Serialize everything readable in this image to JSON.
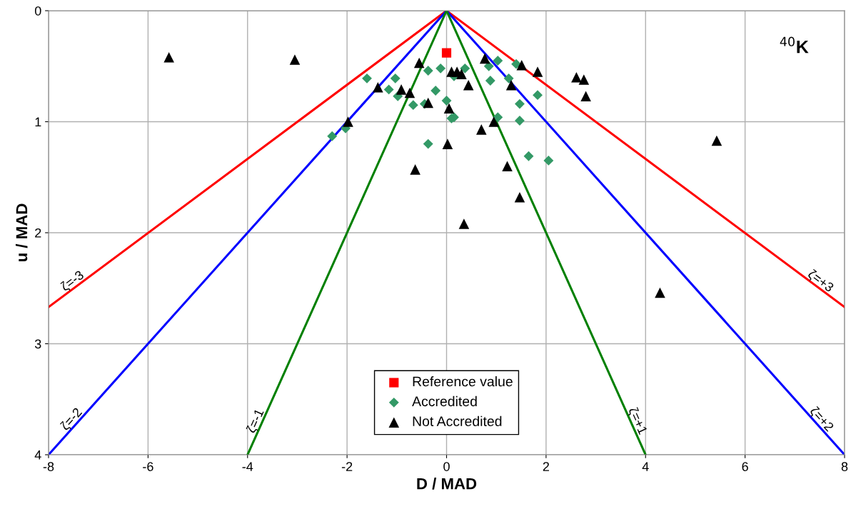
{
  "chart_data": {
    "type": "scatter",
    "xlabel": "D / MAD",
    "ylabel": "u / MAD",
    "xlim": [
      -8,
      8
    ],
    "xticks": [
      -8,
      -6,
      -4,
      -2,
      0,
      2,
      4,
      6,
      8
    ],
    "ylim": [
      4,
      0
    ],
    "yticks": [
      0,
      1,
      2,
      3,
      4
    ],
    "grid": true,
    "legend": "bottom",
    "annotations": [
      "$^{40}$K"
    ],
    "series": [
      {
        "type": "line",
        "name": "ζ=-3",
        "color": "#ff0000",
        "line_style": "solid",
        "marker": "none",
        "x": [
          0,
          -8
        ],
        "values": [
          0,
          2.67
        ]
      },
      {
        "type": "line",
        "name": "ζ=+3",
        "color": "#ff0000",
        "line_style": "solid",
        "marker": "none",
        "x": [
          0,
          8
        ],
        "values": [
          0,
          2.67
        ]
      },
      {
        "type": "line",
        "name": "ζ=-2",
        "color": "#0000ff",
        "line_style": "solid",
        "marker": "none",
        "x": [
          0,
          -8
        ],
        "values": [
          0,
          4
        ]
      },
      {
        "type": "line",
        "name": "ζ=+2",
        "color": "#0000ff",
        "line_style": "solid",
        "marker": "none",
        "x": [
          0,
          8
        ],
        "values": [
          0,
          4
        ]
      },
      {
        "type": "line",
        "name": "ζ=-1",
        "color": "#008000",
        "line_style": "solid",
        "marker": "none",
        "x": [
          0,
          -4
        ],
        "values": [
          0,
          4
        ]
      },
      {
        "type": "line",
        "name": "ζ=+1",
        "color": "#008000",
        "line_style": "solid",
        "marker": "none",
        "x": [
          0,
          4
        ],
        "values": [
          0,
          4
        ]
      },
      {
        "name": "Reference value",
        "color": "#ff0000",
        "marker": "square",
        "x": [
          0
        ],
        "values": [
          0.38
        ]
      },
      {
        "name": "Accredited",
        "color": "#339966",
        "marker": "diamond",
        "x": [
          -1.6,
          -1.03,
          -1.16,
          -0.98,
          -0.67,
          -0.37,
          -0.12,
          0.15,
          0.37,
          -0.22,
          0,
          -0.44,
          0.1,
          0.15,
          -0.37,
          -2.03,
          -2.3,
          0.85,
          1.03,
          0.88,
          1.25,
          1.4,
          1.47,
          1.83,
          1.03,
          1.47,
          1.65,
          2.05
        ],
        "values": [
          0.61,
          0.61,
          0.71,
          0.77,
          0.85,
          0.54,
          0.52,
          0.59,
          0.52,
          0.72,
          0.81,
          0.84,
          0.97,
          0.96,
          1.2,
          1.06,
          1.13,
          0.5,
          0.45,
          0.63,
          0.61,
          0.48,
          0.84,
          0.76,
          0.96,
          0.99,
          1.31,
          1.35
        ]
      },
      {
        "name": "Not Accredited",
        "color": "#000000",
        "marker": "triangle",
        "x": [
          -0.55,
          0.1,
          0.21,
          0.3,
          0.44,
          -1.38,
          -0.91,
          -0.74,
          -0.37,
          0.05,
          -1.98,
          0.02,
          -0.63,
          0.7,
          0.95,
          1.22,
          1.47,
          0.35,
          0.77,
          1.51,
          1.83,
          1.3,
          2.61,
          2.76,
          2.8,
          5.43,
          -5.58,
          -3.05,
          4.29
        ],
        "values": [
          0.47,
          0.55,
          0.55,
          0.57,
          0.67,
          0.69,
          0.71,
          0.74,
          0.83,
          0.88,
          1.0,
          1.2,
          1.43,
          1.07,
          1.0,
          1.4,
          1.68,
          1.92,
          0.43,
          0.49,
          0.55,
          0.67,
          0.6,
          0.62,
          0.77,
          1.17,
          0.42,
          0.44,
          2.54
        ]
      }
    ]
  }
}
